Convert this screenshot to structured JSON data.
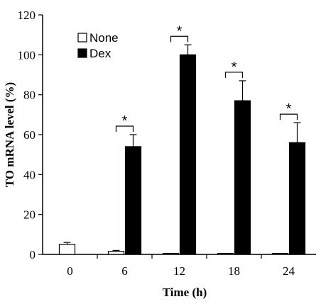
{
  "chart_data": {
    "type": "bar",
    "title": "",
    "xlabel": "Time (h)",
    "ylabel": "TO mRNA level (%)",
    "categories": [
      "0",
      "6",
      "12",
      "18",
      "24"
    ],
    "ylim": [
      0,
      120
    ],
    "yticks": [
      "0",
      "20",
      "40",
      "60",
      "80",
      "100",
      "120"
    ],
    "series": [
      {
        "name": "None",
        "color": "#ffffff",
        "values": [
          5,
          1.5,
          0.5,
          0.5,
          0.5
        ],
        "errors": [
          1,
          0.5,
          0,
          0,
          0
        ]
      },
      {
        "name": "Dex",
        "color": "#000000",
        "values": [
          null,
          54,
          100,
          77,
          56
        ],
        "errors": [
          null,
          6,
          5,
          10,
          10
        ]
      }
    ],
    "annotations": [
      "",
      "*",
      "*",
      "*",
      "*"
    ],
    "legend": "top-left"
  }
}
